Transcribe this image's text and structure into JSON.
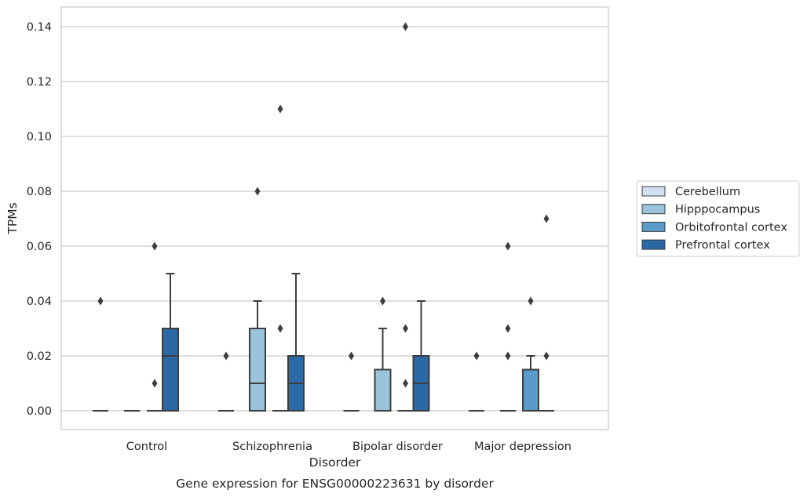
{
  "caption": "Gene expression for ENSG00000223631 by disorder",
  "chart_data": {
    "type": "box",
    "title": "",
    "xlabel": "Disorder",
    "ylabel": "TPMs",
    "ylim": [
      -0.007,
      0.147
    ],
    "yticks": [
      "0.00",
      "0.02",
      "0.04",
      "0.06",
      "0.08",
      "0.10",
      "0.12",
      "0.14"
    ],
    "ytick_values": [
      0,
      0.02,
      0.04,
      0.06,
      0.08,
      0.1,
      0.12,
      0.14
    ],
    "grid": "horizontal",
    "legend_position": "right",
    "categories": [
      "Control",
      "Schizophrenia",
      "Bipolar disorder",
      "Major depression"
    ],
    "series": [
      {
        "name": "Cerebellum",
        "color": "#d0e1f2",
        "boxes": [
          {
            "q1": 0,
            "median": 0,
            "q3": 0,
            "whisker_low": 0,
            "whisker_high": 0,
            "outliers": [
              0.04
            ]
          },
          {
            "q1": 0,
            "median": 0,
            "q3": 0,
            "whisker_low": 0,
            "whisker_high": 0,
            "outliers": [
              0.02
            ]
          },
          {
            "q1": 0,
            "median": 0,
            "q3": 0,
            "whisker_low": 0,
            "whisker_high": 0,
            "outliers": [
              0.02
            ]
          },
          {
            "q1": 0,
            "median": 0,
            "q3": 0,
            "whisker_low": 0,
            "whisker_high": 0,
            "outliers": [
              0.02
            ]
          }
        ]
      },
      {
        "name": "Hipppocampus",
        "color": "#9ac3dc",
        "boxes": [
          {
            "q1": 0,
            "median": 0,
            "q3": 0,
            "whisker_low": 0,
            "whisker_high": 0,
            "outliers": []
          },
          {
            "q1": 0,
            "median": 0.01,
            "q3": 0.03,
            "whisker_low": 0,
            "whisker_high": 0.04,
            "outliers": [
              0.08
            ]
          },
          {
            "q1": 0,
            "median": 0,
            "q3": 0.015,
            "whisker_low": 0,
            "whisker_high": 0.03,
            "outliers": [
              0.04
            ]
          },
          {
            "q1": 0,
            "median": 0,
            "q3": 0,
            "whisker_low": 0,
            "whisker_high": 0,
            "outliers": [
              0.06,
              0.03,
              0.02
            ]
          }
        ]
      },
      {
        "name": "Orbitofrontal cortex",
        "color": "#5b9bc9",
        "boxes": [
          {
            "q1": 0,
            "median": 0,
            "q3": 0,
            "whisker_low": 0,
            "whisker_high": 0,
            "outliers": [
              0.06,
              0.01
            ]
          },
          {
            "q1": 0,
            "median": 0,
            "q3": 0,
            "whisker_low": 0,
            "whisker_high": 0,
            "outliers": [
              0.11,
              0.03
            ]
          },
          {
            "q1": 0,
            "median": 0,
            "q3": 0,
            "whisker_low": 0,
            "whisker_high": 0,
            "outliers": [
              0.14,
              0.03,
              0.01
            ]
          },
          {
            "q1": 0,
            "median": 0,
            "q3": 0.015,
            "whisker_low": 0,
            "whisker_high": 0.02,
            "outliers": [
              0.04
            ]
          }
        ]
      },
      {
        "name": "Prefrontal cortex",
        "color": "#2a69a6",
        "boxes": [
          {
            "q1": 0,
            "median": 0.02,
            "q3": 0.03,
            "whisker_low": 0,
            "whisker_high": 0.05,
            "outliers": []
          },
          {
            "q1": 0,
            "median": 0.01,
            "q3": 0.02,
            "whisker_low": 0,
            "whisker_high": 0.05,
            "outliers": []
          },
          {
            "q1": 0,
            "median": 0.01,
            "q3": 0.02,
            "whisker_low": 0,
            "whisker_high": 0.04,
            "outliers": []
          },
          {
            "q1": 0,
            "median": 0,
            "q3": 0,
            "whisker_low": 0,
            "whisker_high": 0,
            "outliers": [
              0.07,
              0.02
            ]
          }
        ]
      }
    ]
  }
}
